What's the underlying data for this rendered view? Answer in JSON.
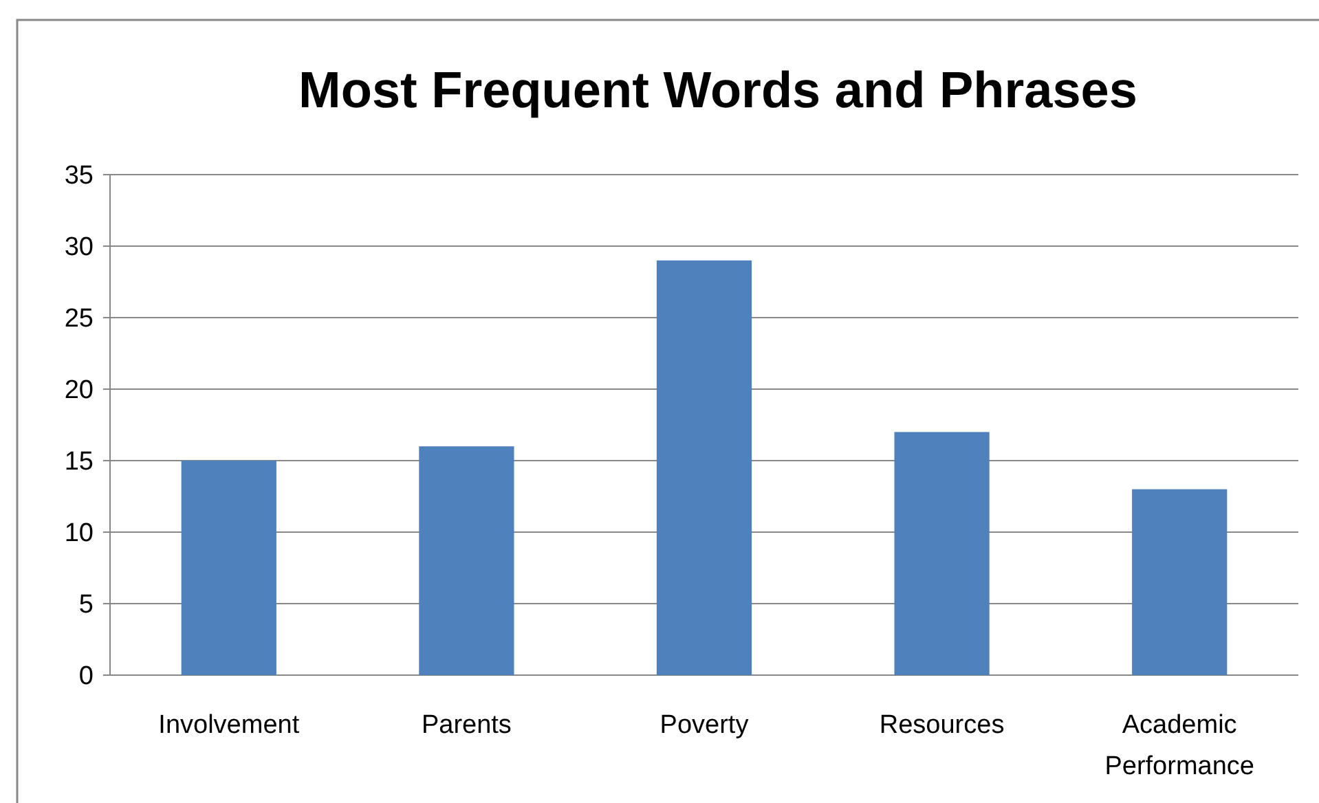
{
  "chart_data": {
    "type": "bar",
    "title": "Most Frequent Words and Phrases",
    "categories": [
      "Involvement",
      "Parents",
      "Poverty",
      "Resources",
      "Academic Performance"
    ],
    "values": [
      15,
      16,
      29,
      17,
      13
    ],
    "color": "#4f81bd",
    "ylim": [
      0,
      35
    ],
    "yticks": [
      0,
      5,
      10,
      15,
      20,
      25,
      30,
      35
    ],
    "grid": "y"
  }
}
